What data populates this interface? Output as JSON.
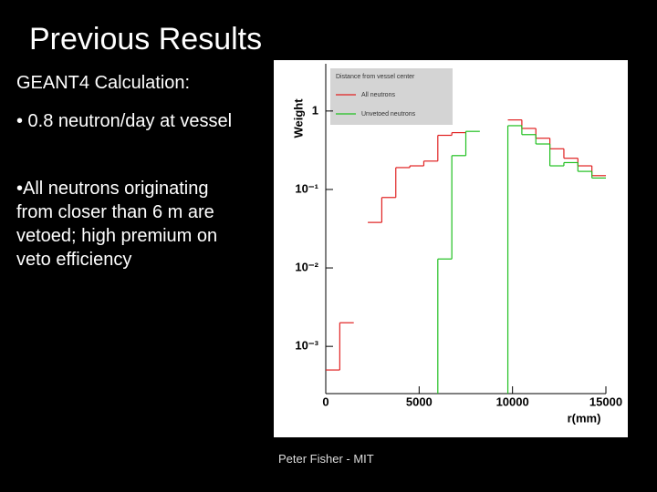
{
  "slide": {
    "title": "Previous Results",
    "heading": "GEANT4 Calculation:",
    "bullets": [
      "• 0.8 neutron/day at vessel",
      "•All neutrons originating from closer than 6 m are vetoed; high premium on veto efficiency"
    ],
    "footer": "Peter Fisher - MIT"
  },
  "chart_data": {
    "type": "histogram",
    "legend_title": "Distance from vessel center",
    "x_label": "r(mm)",
    "y_label": "Weight",
    "log_y": true,
    "legend": "top-left",
    "bins": [
      0,
      750,
      1500,
      2250,
      3000,
      3750,
      4500,
      5250,
      6000,
      6750,
      7500,
      8250,
      9000,
      9750,
      10500,
      11250,
      12000,
      12750,
      13500,
      14250,
      15000
    ],
    "series": [
      {
        "name": "All neutrons",
        "color": "#e02020",
        "values": [
          0.0005,
          0.002,
          0,
          0.038,
          0.079,
          0.19,
          0.2,
          0.23,
          0.49,
          0.53,
          0,
          0,
          0,
          0.77,
          0.6,
          0.45,
          0.33,
          0.25,
          0.2,
          0.15
        ]
      },
      {
        "name": "Unvetoed neutrons",
        "color": "#20c020",
        "values": [
          0,
          0,
          0,
          0,
          0,
          0,
          0,
          0,
          0.013,
          0.27,
          0.55,
          0,
          0,
          0.65,
          0.5,
          0.38,
          0.2,
          0.22,
          0.17,
          0.14
        ]
      }
    ],
    "xlim": [
      0,
      15000
    ],
    "xticks": [
      0,
      5000,
      10000,
      15000
    ],
    "ylim": [
      0.00025,
      4
    ],
    "yticks": [
      {
        "value": 0.001,
        "label": "10⁻³"
      },
      {
        "value": 0.01,
        "label": "10⁻²"
      },
      {
        "value": 0.1,
        "label": "10⁻¹"
      },
      1
    ]
  }
}
